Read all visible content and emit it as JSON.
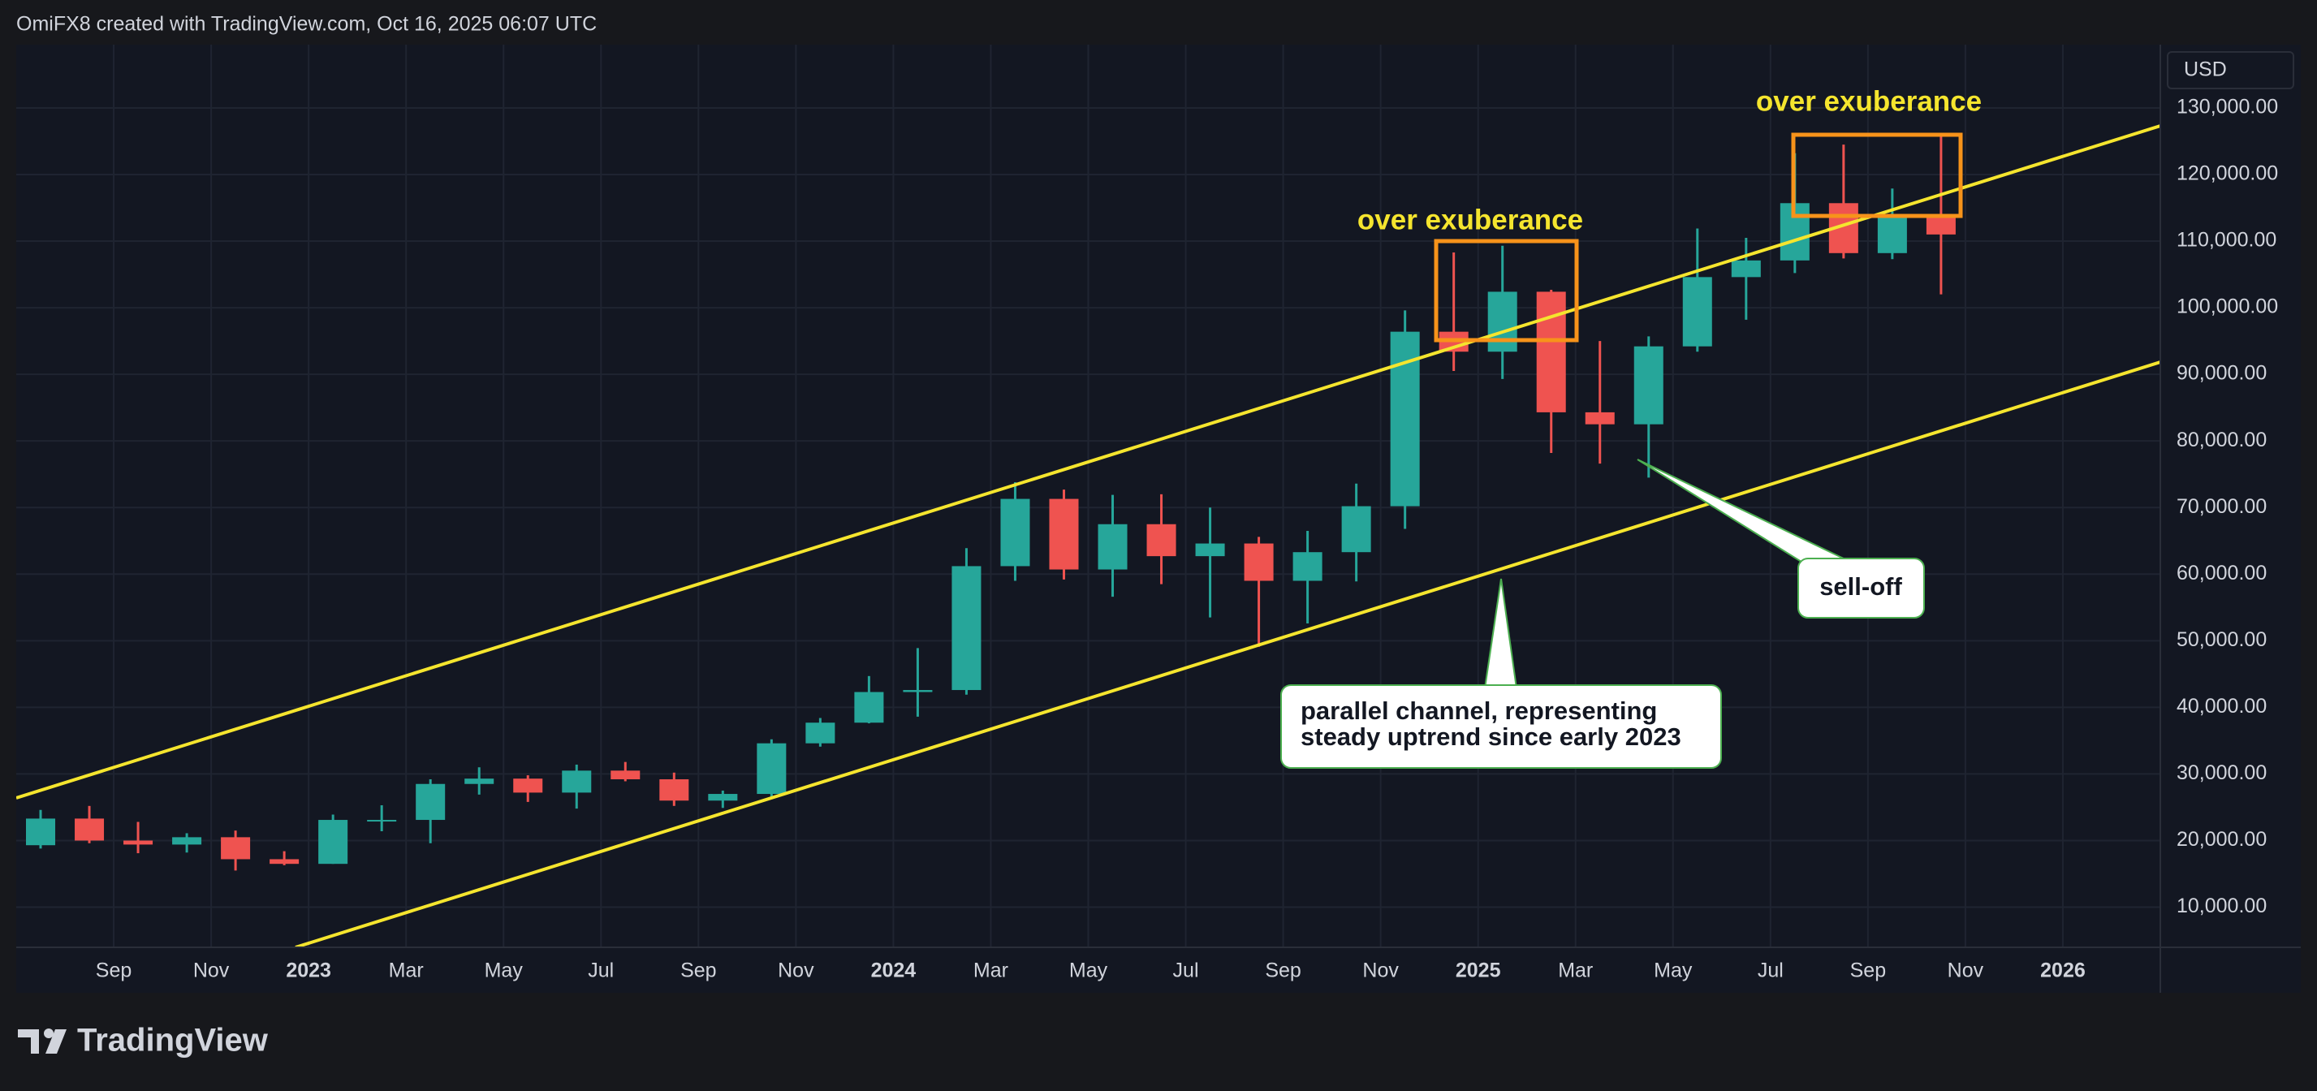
{
  "header": "OmiFX8 created with TradingView.com, Oct 16, 2025 06:07 UTC",
  "brand": "TradingView",
  "currency": "USD",
  "chart_data": {
    "type": "candlestick",
    "x": [
      "2022-07",
      "2022-08",
      "2022-09",
      "2022-10",
      "2022-11",
      "2022-12",
      "2023-01",
      "2023-02",
      "2023-03",
      "2023-04",
      "2023-05",
      "2023-06",
      "2023-07",
      "2023-08",
      "2023-09",
      "2023-10",
      "2023-11",
      "2023-12",
      "2024-01",
      "2024-02",
      "2024-03",
      "2024-04",
      "2024-05",
      "2024-06",
      "2024-07",
      "2024-08",
      "2024-09",
      "2024-10",
      "2024-11",
      "2024-12",
      "2025-01",
      "2025-02",
      "2025-03",
      "2025-04",
      "2025-05",
      "2025-06",
      "2025-07",
      "2025-08",
      "2025-09",
      "2025-10"
    ],
    "open": [
      19300,
      23300,
      20000,
      19400,
      20500,
      17200,
      16500,
      23100,
      23100,
      28500,
      29300,
      27200,
      30500,
      29200,
      26000,
      27000,
      34600,
      37700,
      42300,
      42600,
      61200,
      71300,
      60700,
      67500,
      62700,
      64600,
      59000,
      63300,
      70200,
      96400,
      93400,
      102400,
      84300,
      82500,
      94200,
      104600,
      107100,
      115700,
      108200,
      114000
    ],
    "high": [
      24600,
      25200,
      22800,
      21100,
      21500,
      18400,
      23900,
      25300,
      29200,
      31000,
      29800,
      31400,
      31800,
      30200,
      27500,
      35200,
      38400,
      44700,
      48900,
      63900,
      73800,
      72700,
      71900,
      72000,
      70000,
      65600,
      66500,
      73600,
      99600,
      108300,
      109300,
      102700,
      95000,
      95700,
      111900,
      110500,
      123200,
      124500,
      117900,
      126200
    ],
    "low": [
      18800,
      19600,
      18100,
      18200,
      15500,
      16300,
      16500,
      21400,
      19600,
      26900,
      25800,
      24800,
      28900,
      25200,
      24900,
      26600,
      34100,
      37600,
      38600,
      41900,
      59000,
      59200,
      56600,
      58500,
      53500,
      49100,
      52600,
      58900,
      66800,
      90500,
      89300,
      78200,
      76600,
      74500,
      93400,
      98200,
      105200,
      107400,
      107300,
      102000
    ],
    "close": [
      23300,
      20000,
      19400,
      20500,
      17200,
      16500,
      23100,
      23100,
      28500,
      29300,
      27200,
      30500,
      29200,
      26000,
      27000,
      34600,
      37700,
      42300,
      42600,
      61200,
      71300,
      60700,
      67500,
      62700,
      64600,
      59000,
      63300,
      70200,
      96400,
      93400,
      102400,
      84300,
      82500,
      94200,
      104600,
      107100,
      115700,
      108200,
      114000,
      111000
    ],
    "up_color": "#26a69a",
    "down_color": "#ef5350",
    "xlim": [
      "2022-07",
      "2026-03"
    ],
    "xticks": [
      {
        "value": "2022-09",
        "label": "Sep"
      },
      {
        "value": "2022-11",
        "label": "Nov"
      },
      {
        "value": "2023-01",
        "label": "2023"
      },
      {
        "value": "2023-03",
        "label": "Mar"
      },
      {
        "value": "2023-05",
        "label": "May"
      },
      {
        "value": "2023-07",
        "label": "Jul"
      },
      {
        "value": "2023-09",
        "label": "Sep"
      },
      {
        "value": "2023-11",
        "label": "Nov"
      },
      {
        "value": "2024-01",
        "label": "2024"
      },
      {
        "value": "2024-03",
        "label": "Mar"
      },
      {
        "value": "2024-05",
        "label": "May"
      },
      {
        "value": "2024-07",
        "label": "Jul"
      },
      {
        "value": "2024-09",
        "label": "Sep"
      },
      {
        "value": "2024-11",
        "label": "Nov"
      },
      {
        "value": "2025-01",
        "label": "2025"
      },
      {
        "value": "2025-03",
        "label": "Mar"
      },
      {
        "value": "2025-05",
        "label": "May"
      },
      {
        "value": "2025-07",
        "label": "Jul"
      },
      {
        "value": "2025-09",
        "label": "Sep"
      },
      {
        "value": "2025-11",
        "label": "Nov"
      },
      {
        "value": "2026-01",
        "label": "2026"
      }
    ],
    "ylim": [
      3970,
      139500
    ],
    "yticks": [
      {
        "value": 10000,
        "label": "10,000.00"
      },
      {
        "value": 20000,
        "label": "20,000.00"
      },
      {
        "value": 30000,
        "label": "30,000.00"
      },
      {
        "value": 40000,
        "label": "40,000.00"
      },
      {
        "value": 50000,
        "label": "50,000.00"
      },
      {
        "value": 60000,
        "label": "60,000.00"
      },
      {
        "value": 70000,
        "label": "70,000.00"
      },
      {
        "value": 80000,
        "label": "80,000.00"
      },
      {
        "value": 90000,
        "label": "90,000.00"
      },
      {
        "value": 100000,
        "label": "100,000.00"
      },
      {
        "value": 110000,
        "label": "110,000.00"
      },
      {
        "value": 120000,
        "label": "120,000.00"
      },
      {
        "value": 130000,
        "label": "130,000.00"
      }
    ],
    "grid": true,
    "annotation_exuberance_1": "over exuberance",
    "annotation_exuberance_2": "over exuberance",
    "annotation_selloff": "sell-off",
    "annotation_channel": [
      "parallel channel, representing",
      "steady uptrend since early 2023"
    ]
  }
}
